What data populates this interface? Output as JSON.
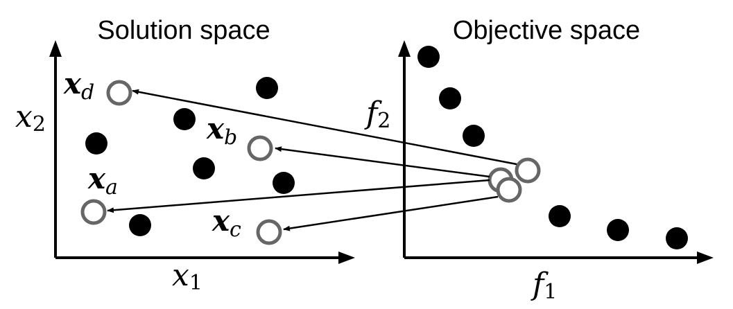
{
  "left_panel": {
    "title": "Solution space",
    "x_axis_label": {
      "base": "x",
      "sub": "1"
    },
    "y_axis_label": {
      "base": "x",
      "sub": "2"
    },
    "labels": {
      "a": {
        "base": "x",
        "sub": "a"
      },
      "b": {
        "base": "x",
        "sub": "b"
      },
      "c": {
        "base": "x",
        "sub": "c"
      },
      "d": {
        "base": "x",
        "sub": "d"
      }
    }
  },
  "right_panel": {
    "title": "Objective space",
    "x_axis_label": {
      "base": "f",
      "sub": "1"
    },
    "y_axis_label": {
      "base": "f",
      "sub": "2"
    }
  },
  "colors": {
    "filled_point": "#000000",
    "hollow_point": "#666666",
    "arrow": "#000000",
    "axis": "#000000"
  }
}
